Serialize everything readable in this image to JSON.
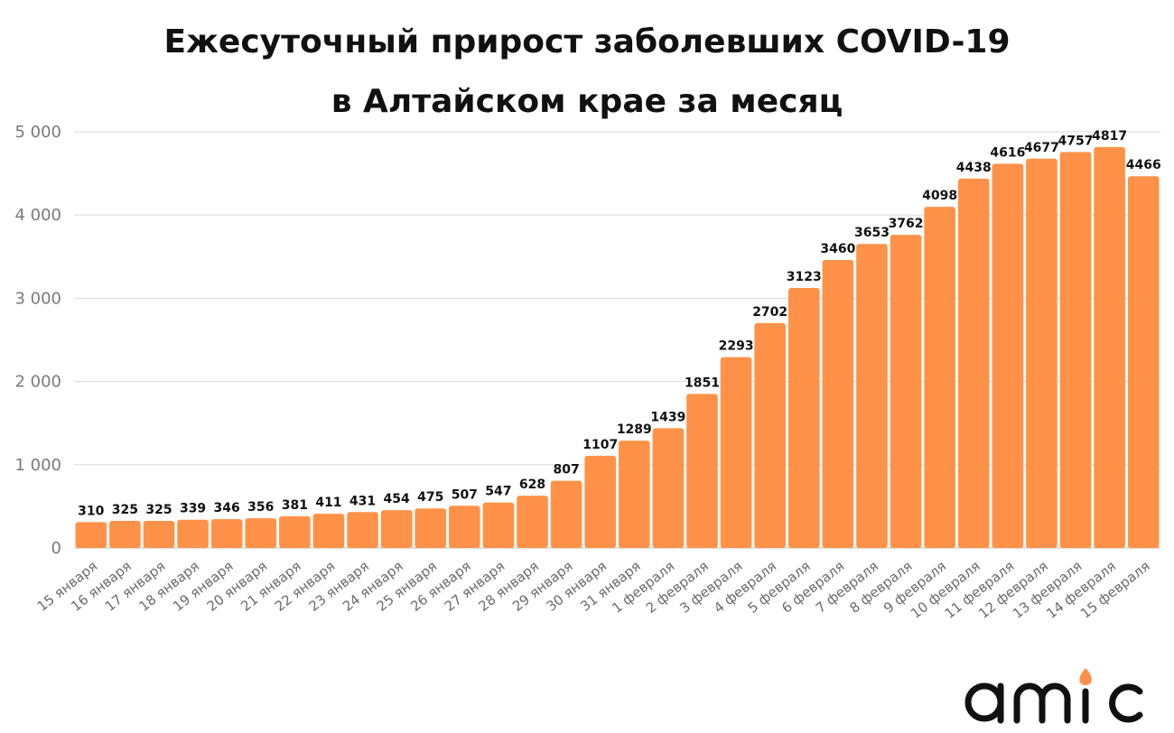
{
  "chart_data": {
    "type": "bar",
    "title": "Ежесуточный прирост заболевших COVID-19",
    "subtitle": "в Алтайском крае за месяц",
    "categories": [
      "15 января",
      "16 января",
      "17 января",
      "18 января",
      "19 января",
      "20 января",
      "21 января",
      "22 января",
      "23 января",
      "24 января",
      "25 января",
      "26 января",
      "27 января",
      "28 января",
      "29 января",
      "30 января",
      "31 января",
      "1 февраля",
      "2 февраля",
      "3 февраля",
      "4 февраля",
      "5 февраля",
      "6 февраля",
      "7 февраля",
      "8 февраля",
      "9 февраля",
      "10 февраля",
      "11 февраля",
      "12 февраля",
      "13 февраля",
      "14 февраля",
      "15 февраля"
    ],
    "values": [
      310,
      325,
      325,
      339,
      346,
      356,
      381,
      411,
      431,
      454,
      475,
      507,
      547,
      628,
      807,
      1107,
      1289,
      1439,
      1851,
      2293,
      2702,
      3123,
      3460,
      3653,
      3762,
      4098,
      4438,
      4616,
      4677,
      4757,
      4817,
      4466
    ],
    "yticks": [
      "0",
      "1 000",
      "2 000",
      "3 000",
      "4 000",
      "5 000"
    ],
    "ylim": [
      0,
      5000
    ],
    "grid": true,
    "legend": "none",
    "colors": {
      "bar": "#FF9248",
      "grid": "#d9d9d9",
      "text": "#111111"
    }
  },
  "logo": {
    "name": "amic-logo",
    "text": "amic"
  }
}
